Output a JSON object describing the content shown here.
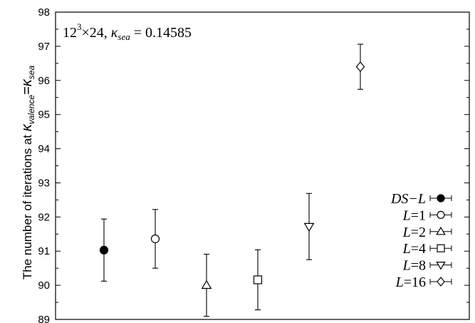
{
  "chart_data": {
    "type": "scatter",
    "title": "",
    "annotation": {
      "base": "12",
      "sup": "3",
      "rest": "×24, ",
      "kappa": "κ",
      "sub": "sea",
      "value": " = 0.14585"
    },
    "ylabel": {
      "pre": "The number of iterations at ",
      "kappa1": "κ",
      "sub1": "valence",
      "eq": "=",
      "kappa2": "κ",
      "sub2": "sea"
    },
    "ylim": [
      89,
      98
    ],
    "yticks": [
      "89",
      "90",
      "91",
      "92",
      "93",
      "94",
      "95",
      "96",
      "97",
      "98"
    ],
    "xticks_shown": false,
    "grid": false,
    "legend_position": "bottom-right",
    "series": [
      {
        "name": "DS−L",
        "marker": "filled-circle",
        "x": 1,
        "y": 91.03,
        "err": 0.91
      },
      {
        "name": "L=1",
        "marker": "open-circle",
        "x": 2,
        "y": 91.36,
        "err": 0.86
      },
      {
        "name": "L=2",
        "marker": "open-triangle-up",
        "x": 3,
        "y": 90.0,
        "err": 0.91
      },
      {
        "name": "L=4",
        "marker": "open-square",
        "x": 4,
        "y": 90.16,
        "err": 0.88
      },
      {
        "name": "L=8",
        "marker": "open-triangle-down",
        "x": 5,
        "y": 91.72,
        "err": 0.97
      },
      {
        "name": "L=16",
        "marker": "open-diamond",
        "x": 6,
        "y": 96.4,
        "err": 0.66
      }
    ],
    "legend": [
      {
        "prefix": "DS−L",
        "suffix": ""
      },
      {
        "prefix": "L",
        "suffix": "=1"
      },
      {
        "prefix": "L",
        "suffix": "=2"
      },
      {
        "prefix": "L",
        "suffix": "=4"
      },
      {
        "prefix": "L",
        "suffix": "=8"
      },
      {
        "prefix": "L",
        "suffix": "=16"
      }
    ]
  }
}
